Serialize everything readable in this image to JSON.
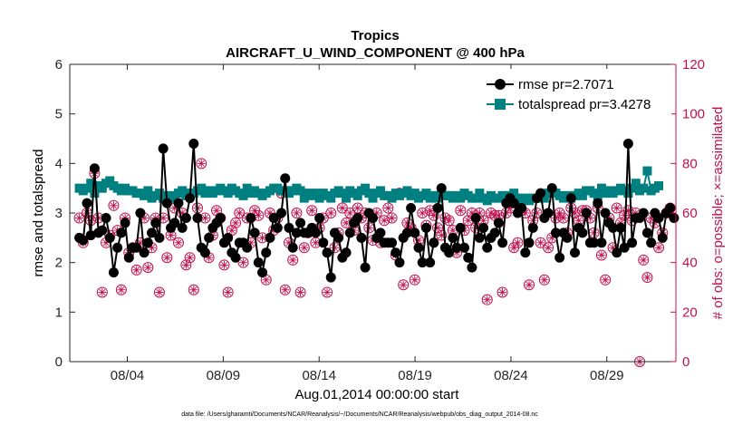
{
  "chart_data": {
    "type": "line",
    "title": "Tropics",
    "subtitle": "AIRCRAFT_U_WIND_COMPONENT @ 400 hPa",
    "xlabel": "Aug.01,2014 00:00:00 start",
    "ylabel": "rmse and totalspread",
    "ylabel_right": "# of obs: o=possible; ×=assimilated",
    "footer": "data file: /Users/gharamti/Documents/NCAR/Reanalysis/~/Documents/NCAR/Reanalysis/webpub/obs_diag_output_2014-08.nc",
    "xlim": [
      1,
      32.6
    ],
    "ylim": [
      0,
      6
    ],
    "ylim_right": [
      0,
      120
    ],
    "yticks": [
      "0",
      "1",
      "2",
      "3",
      "4",
      "5",
      "6"
    ],
    "yticks_right": [
      "0",
      "20",
      "40",
      "60",
      "80",
      "100",
      "120"
    ],
    "xticks": [
      {
        "pos": 4,
        "label": "08/04"
      },
      {
        "pos": 9,
        "label": "08/09"
      },
      {
        "pos": 14,
        "label": "08/14"
      },
      {
        "pos": 19,
        "label": "08/19"
      },
      {
        "pos": 24,
        "label": "08/24"
      },
      {
        "pos": 29,
        "label": "08/29"
      }
    ],
    "legend_position": "top-right",
    "series": [
      {
        "name": "rmse",
        "legend": "rmse pr=2.7071",
        "color": "#000000",
        "marker": "circle",
        "values": [
          2.5,
          2.45,
          3.2,
          2.55,
          3.9,
          2.6,
          2.65,
          2.9,
          2.5,
          1.8,
          2.3,
          2.6,
          2.8,
          2.1,
          2.3,
          2.3,
          3.0,
          2.2,
          2.4,
          2.6,
          2.8,
          2.5,
          4.3,
          3.2,
          2.7,
          2.8,
          3.2,
          2.7,
          2.9,
          3.3,
          4.4,
          2.9,
          2.3,
          2.2,
          2.5,
          2.7,
          2.8,
          2.9,
          2.4,
          2.5,
          2.2,
          2.1,
          2.4,
          2.4,
          2.3,
          2.9,
          2.6,
          2.0,
          1.8,
          2.2,
          2.5,
          2.9,
          2.7,
          3.0,
          3.7,
          2.7,
          2.3,
          2.6,
          2.8,
          2.6,
          2.6,
          2.7,
          2.6,
          2.9,
          2.4,
          2.2,
          1.7,
          2.6,
          2.5,
          2.1,
          2.2,
          2.6,
          2.8,
          2.9,
          2.5,
          1.9,
          3.0,
          2.9,
          2.5,
          2.6,
          2.4,
          2.4,
          2.4,
          2.2,
          2.0,
          2.5,
          2.6,
          3.1,
          2.6,
          2.3,
          2.0,
          2.7,
          2.0,
          2.4,
          3.1,
          3.5,
          2.3,
          2.2,
          2.5,
          2.3,
          2.7,
          2.3,
          2.1,
          1.9,
          2.9,
          2.5,
          2.7,
          2.3,
          2.5,
          2.6,
          2.8,
          2.4,
          3.2,
          3.3,
          3.2,
          3.0,
          3.1,
          2.2,
          2.4,
          2.7,
          3.3,
          3.4,
          2.9,
          3.0,
          3.5,
          2.6,
          2.1,
          2.6,
          2.5,
          3.3,
          2.2,
          2.7,
          2.6,
          3.0,
          2.4,
          2.4,
          3.2,
          2.4,
          3.0,
          2.8,
          2.7,
          2.2,
          2.7,
          2.3,
          4.4,
          2.4,
          2.9,
          2.9,
          3.0,
          2.6,
          2.4,
          3.0,
          2.9,
          2.5,
          3.0,
          3.1,
          2.9
        ]
      },
      {
        "name": "totalspread",
        "legend": "totalspread pr=3.4278",
        "color": "#008080",
        "marker": "square",
        "values": [
          3.5,
          3.45,
          3.5,
          3.6,
          3.4,
          3.55,
          3.5,
          3.6,
          3.65,
          3.55,
          3.5,
          3.45,
          3.5,
          3.45,
          3.45,
          3.4,
          3.4,
          3.35,
          3.45,
          3.3,
          3.35,
          3.4,
          3.3,
          3.35,
          3.3,
          3.35,
          3.4,
          3.45,
          3.35,
          3.4,
          3.4,
          3.45,
          3.5,
          3.4,
          3.45,
          3.4,
          3.45,
          3.5,
          3.45,
          3.4,
          3.5,
          3.45,
          3.4,
          3.35,
          3.5,
          3.4,
          3.45,
          3.4,
          3.35,
          3.4,
          3.45,
          3.5,
          3.5,
          3.45,
          3.45,
          3.4,
          3.45,
          3.5,
          3.45,
          3.3,
          3.4,
          3.35,
          3.4,
          3.3,
          3.4,
          3.35,
          3.3,
          3.4,
          3.45,
          3.4,
          3.3,
          3.45,
          3.4,
          3.35,
          3.45,
          3.5,
          3.4,
          3.3,
          3.4,
          3.45,
          3.35,
          3.35,
          3.3,
          3.4,
          3.35,
          3.4,
          3.45,
          3.35,
          3.4,
          3.3,
          3.35,
          3.4,
          3.3,
          3.35,
          3.3,
          3.4,
          3.35,
          3.35,
          3.3,
          3.35,
          3.3,
          3.4,
          3.35,
          3.3,
          3.3,
          3.4,
          3.3,
          3.25,
          3.35,
          3.3,
          3.3,
          3.35,
          3.35,
          3.3,
          3.4,
          3.3,
          3.25,
          3.3,
          3.25,
          3.3,
          3.3,
          3.35,
          3.3,
          3.4,
          3.45,
          3.4,
          3.35,
          3.3,
          3.35,
          3.3,
          3.35,
          3.4,
          3.35,
          3.45,
          3.45,
          3.4,
          3.35,
          3.5,
          3.4,
          3.45,
          3.4,
          3.45,
          3.5,
          3.45,
          3.4,
          3.5,
          3.6,
          3.45,
          3.5,
          3.85,
          3.45,
          3.5,
          3.55
        ]
      },
      {
        "name": "# of obs possible",
        "axis": "right",
        "color": "#c0104f",
        "marker": "circle-open",
        "values": [
          58,
          48,
          60,
          57,
          76,
          58,
          28,
          48,
          51,
          63,
          53,
          29,
          58,
          44,
          46,
          37,
          48,
          58,
          38,
          46,
          58,
          28,
          58,
          42,
          51,
          62,
          48,
          60,
          39,
          42,
          29,
          62,
          80,
          58,
          42,
          51,
          61,
          58,
          39,
          28,
          53,
          56,
          60,
          40,
          58,
          48,
          61,
          59,
          50,
          33,
          60,
          53,
          58,
          68,
          29,
          48,
          41,
          60,
          28,
          46,
          52,
          61,
          48,
          54,
          58,
          28,
          60,
          46,
          52,
          62,
          56,
          60,
          53,
          62,
          58,
          60,
          54,
          49,
          60,
          48,
          57,
          62,
          58,
          43,
          68,
          31,
          56,
          54,
          33,
          49,
          60,
          55,
          61,
          59,
          54,
          51,
          58,
          57,
          53,
          44,
          61,
          53,
          57,
          60,
          54,
          60,
          57,
          25,
          60,
          59,
          59,
          28,
          60,
          62,
          46,
          48,
          61,
          60,
          31,
          57,
          60,
          48,
          33,
          46,
          50,
          58,
          60,
          58,
          52,
          62,
          60,
          57,
          61,
          61,
          58,
          52,
          62,
          43,
          33,
          58,
          46,
          62,
          56,
          59,
          61,
          57,
          60,
          0,
          41,
          34,
          58,
          56,
          46,
          52,
          60,
          62
        ]
      },
      {
        "name": "# of obs assimilated",
        "axis": "right",
        "color": "#c0104f",
        "marker": "asterisk",
        "values": [
          58,
          48,
          60,
          57,
          76,
          58,
          28,
          48,
          51,
          63,
          53,
          29,
          58,
          44,
          46,
          37,
          48,
          58,
          38,
          46,
          58,
          28,
          58,
          42,
          51,
          62,
          48,
          60,
          39,
          42,
          29,
          62,
          80,
          58,
          42,
          51,
          61,
          58,
          39,
          28,
          53,
          56,
          60,
          40,
          58,
          48,
          61,
          59,
          50,
          33,
          60,
          53,
          58,
          68,
          29,
          48,
          41,
          60,
          28,
          46,
          52,
          61,
          48,
          54,
          58,
          28,
          60,
          46,
          52,
          62,
          56,
          60,
          53,
          62,
          58,
          60,
          54,
          49,
          60,
          48,
          57,
          62,
          58,
          43,
          68,
          31,
          56,
          54,
          33,
          49,
          60,
          55,
          61,
          59,
          54,
          51,
          58,
          57,
          53,
          44,
          61,
          53,
          57,
          60,
          54,
          60,
          57,
          25,
          60,
          59,
          59,
          28,
          60,
          62,
          46,
          48,
          61,
          60,
          31,
          57,
          60,
          48,
          33,
          46,
          50,
          58,
          60,
          58,
          52,
          62,
          60,
          57,
          61,
          61,
          58,
          52,
          62,
          43,
          33,
          58,
          46,
          62,
          56,
          59,
          61,
          57,
          60,
          0,
          41,
          34,
          58,
          56,
          46,
          52,
          60,
          62
        ]
      }
    ]
  }
}
